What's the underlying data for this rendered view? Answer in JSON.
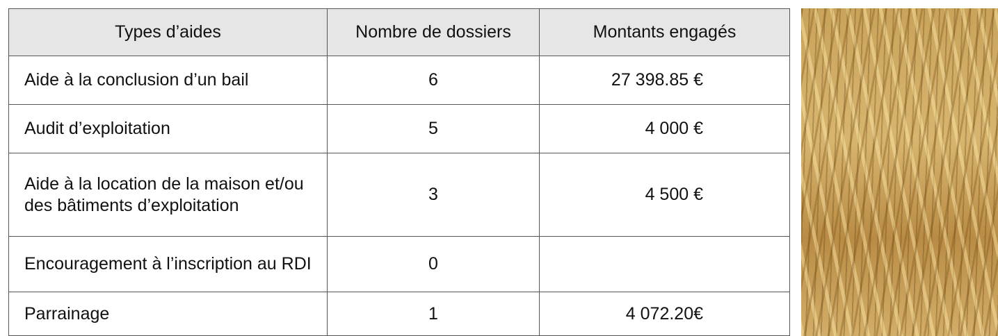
{
  "table": {
    "header": [
      "Types d’aides",
      "Nombre de dossiers",
      "Montants engagés"
    ],
    "rows": [
      [
        "Aide à la conclusion d’un bail",
        6,
        "27 398.85 €"
      ],
      [
        "Audit d’exploitation",
        5,
        "4 000 €"
      ],
      [
        "Aide à la location de la maison et/ou des bâtiments d’exploitation",
        3,
        "4 500 €"
      ],
      [
        "Encouragement à l’inscription au RDI",
        0,
        null
      ],
      [
        "Parrainage",
        1,
        "4 072.20€"
      ]
    ]
  }
}
